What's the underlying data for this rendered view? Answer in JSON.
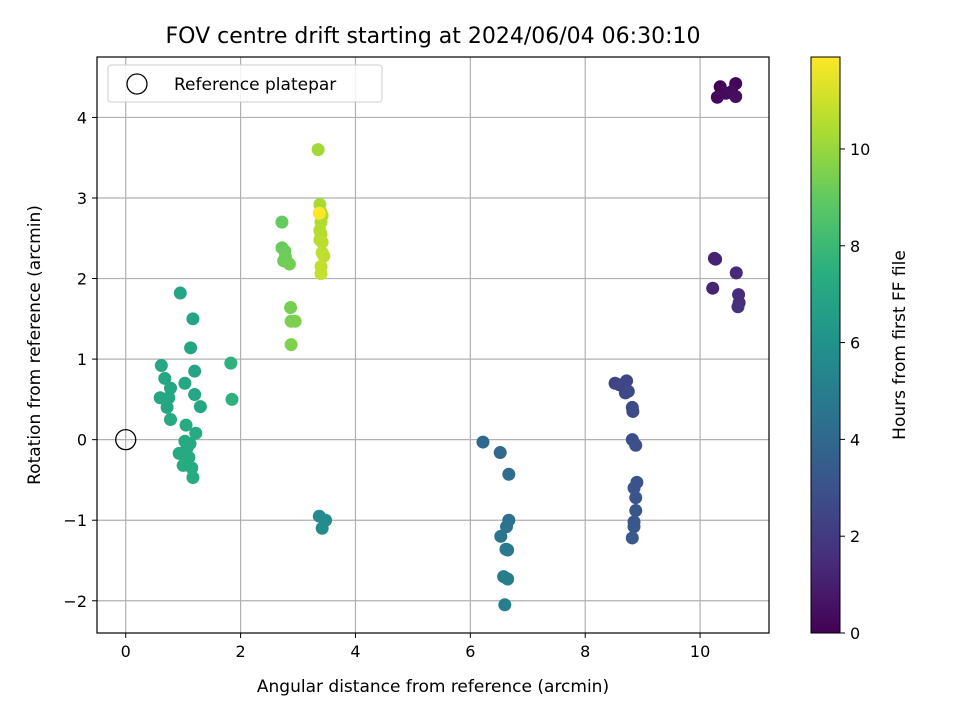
{
  "chart_data": {
    "type": "scatter",
    "title": "FOV centre drift starting at 2024/06/04 06:30:10",
    "xlabel": "Angular distance from reference (arcmin)",
    "ylabel": "Rotation from reference (arcmin)",
    "xlim": [
      -0.5,
      11.2
    ],
    "ylim": [
      -2.4,
      4.75
    ],
    "xticks": [
      0,
      2,
      4,
      6,
      8,
      10
    ],
    "yticks": [
      -2,
      -1,
      0,
      1,
      2,
      3,
      4
    ],
    "grid": true,
    "colormap": "viridis",
    "legend": {
      "placement": "top-left",
      "entries": [
        "Reference platepar"
      ]
    },
    "reference_point": {
      "x": 0,
      "y": 0
    },
    "colorbar": {
      "label": "Hours from first FF file",
      "ticks": [
        0,
        2,
        4,
        6,
        8,
        10
      ],
      "range": [
        0,
        11.9
      ]
    },
    "points": [
      {
        "x": 10.35,
        "y": 4.38,
        "c": 0.05
      },
      {
        "x": 10.62,
        "y": 4.42,
        "c": 0.1
      },
      {
        "x": 10.3,
        "y": 4.25,
        "c": 0.2
      },
      {
        "x": 10.45,
        "y": 4.3,
        "c": 0.3
      },
      {
        "x": 10.55,
        "y": 4.32,
        "c": 0.35
      },
      {
        "x": 10.62,
        "y": 4.26,
        "c": 0.45
      },
      {
        "x": 10.25,
        "y": 2.25,
        "c": 1.0
      },
      {
        "x": 10.27,
        "y": 2.24,
        "c": 1.1
      },
      {
        "x": 10.22,
        "y": 1.88,
        "c": 1.2
      },
      {
        "x": 10.63,
        "y": 2.07,
        "c": 1.4
      },
      {
        "x": 10.67,
        "y": 1.8,
        "c": 1.5
      },
      {
        "x": 10.68,
        "y": 1.7,
        "c": 1.6
      },
      {
        "x": 10.66,
        "y": 1.65,
        "c": 1.7
      },
      {
        "x": 8.52,
        "y": 0.7,
        "c": 2.4
      },
      {
        "x": 8.6,
        "y": 0.68,
        "c": 2.45
      },
      {
        "x": 8.72,
        "y": 0.73,
        "c": 2.5
      },
      {
        "x": 8.7,
        "y": 0.58,
        "c": 2.55
      },
      {
        "x": 8.75,
        "y": 0.6,
        "c": 2.6
      },
      {
        "x": 8.82,
        "y": 0.4,
        "c": 2.7
      },
      {
        "x": 8.83,
        "y": 0.35,
        "c": 2.75
      },
      {
        "x": 8.82,
        "y": 0.0,
        "c": 2.8
      },
      {
        "x": 8.88,
        "y": -0.07,
        "c": 2.9
      },
      {
        "x": 8.9,
        "y": -0.53,
        "c": 3.0
      },
      {
        "x": 8.85,
        "y": -0.6,
        "c": 3.05
      },
      {
        "x": 8.88,
        "y": -0.72,
        "c": 3.1
      },
      {
        "x": 8.88,
        "y": -0.88,
        "c": 3.15
      },
      {
        "x": 8.85,
        "y": -1.02,
        "c": 3.2
      },
      {
        "x": 8.85,
        "y": -1.08,
        "c": 3.25
      },
      {
        "x": 8.82,
        "y": -1.22,
        "c": 3.3
      },
      {
        "x": 6.22,
        "y": -0.03,
        "c": 4.0
      },
      {
        "x": 6.52,
        "y": -0.16,
        "c": 4.1
      },
      {
        "x": 6.67,
        "y": -0.43,
        "c": 4.2
      },
      {
        "x": 6.67,
        "y": -1.0,
        "c": 4.4
      },
      {
        "x": 6.63,
        "y": -1.08,
        "c": 4.5
      },
      {
        "x": 6.53,
        "y": -1.2,
        "c": 4.55
      },
      {
        "x": 6.62,
        "y": -1.36,
        "c": 4.7
      },
      {
        "x": 6.65,
        "y": -1.37,
        "c": 4.8
      },
      {
        "x": 6.58,
        "y": -1.7,
        "c": 4.9
      },
      {
        "x": 6.65,
        "y": -1.73,
        "c": 5.0
      },
      {
        "x": 6.6,
        "y": -2.05,
        "c": 5.1
      },
      {
        "x": 3.37,
        "y": -0.95,
        "c": 5.6
      },
      {
        "x": 3.48,
        "y": -1.0,
        "c": 5.7
      },
      {
        "x": 3.42,
        "y": -1.1,
        "c": 5.8
      },
      {
        "x": 0.95,
        "y": 1.82,
        "c": 7.0
      },
      {
        "x": 1.17,
        "y": 1.5,
        "c": 7.0
      },
      {
        "x": 1.13,
        "y": 1.14,
        "c": 7.0
      },
      {
        "x": 1.2,
        "y": 0.85,
        "c": 7.0
      },
      {
        "x": 0.62,
        "y": 0.92,
        "c": 7.1
      },
      {
        "x": 0.68,
        "y": 0.76,
        "c": 7.1
      },
      {
        "x": 0.78,
        "y": 0.64,
        "c": 7.1
      },
      {
        "x": 1.03,
        "y": 0.7,
        "c": 7.1
      },
      {
        "x": 0.6,
        "y": 0.52,
        "c": 7.1
      },
      {
        "x": 0.75,
        "y": 0.52,
        "c": 7.1
      },
      {
        "x": 0.72,
        "y": 0.4,
        "c": 7.1
      },
      {
        "x": 1.2,
        "y": 0.56,
        "c": 7.1
      },
      {
        "x": 1.3,
        "y": 0.41,
        "c": 7.1
      },
      {
        "x": 0.78,
        "y": 0.25,
        "c": 7.2
      },
      {
        "x": 1.05,
        "y": 0.18,
        "c": 7.2
      },
      {
        "x": 1.22,
        "y": 0.08,
        "c": 7.2
      },
      {
        "x": 1.03,
        "y": -0.02,
        "c": 7.2
      },
      {
        "x": 1.12,
        "y": -0.05,
        "c": 7.2
      },
      {
        "x": 1.07,
        "y": -0.1,
        "c": 7.2
      },
      {
        "x": 0.93,
        "y": -0.17,
        "c": 7.2
      },
      {
        "x": 1.1,
        "y": -0.22,
        "c": 7.2
      },
      {
        "x": 1.0,
        "y": -0.32,
        "c": 7.3
      },
      {
        "x": 1.15,
        "y": -0.35,
        "c": 7.3
      },
      {
        "x": 1.17,
        "y": -0.47,
        "c": 7.3
      },
      {
        "x": 1.83,
        "y": 0.95,
        "c": 7.6
      },
      {
        "x": 1.85,
        "y": 0.5,
        "c": 7.6
      },
      {
        "x": 2.72,
        "y": 2.7,
        "c": 9.0
      },
      {
        "x": 2.72,
        "y": 2.38,
        "c": 9.1
      },
      {
        "x": 2.77,
        "y": 2.34,
        "c": 9.15
      },
      {
        "x": 2.78,
        "y": 2.27,
        "c": 9.2
      },
      {
        "x": 2.75,
        "y": 2.22,
        "c": 9.25
      },
      {
        "x": 2.85,
        "y": 2.18,
        "c": 9.3
      },
      {
        "x": 2.87,
        "y": 1.64,
        "c": 9.4
      },
      {
        "x": 2.88,
        "y": 1.47,
        "c": 9.45
      },
      {
        "x": 2.95,
        "y": 1.47,
        "c": 9.5
      },
      {
        "x": 2.88,
        "y": 1.18,
        "c": 9.55
      },
      {
        "x": 3.35,
        "y": 3.6,
        "c": 10.2
      },
      {
        "x": 3.38,
        "y": 2.92,
        "c": 10.3
      },
      {
        "x": 3.4,
        "y": 2.82,
        "c": 10.35
      },
      {
        "x": 3.42,
        "y": 2.78,
        "c": 10.4
      },
      {
        "x": 3.4,
        "y": 2.7,
        "c": 10.45
      },
      {
        "x": 3.38,
        "y": 2.6,
        "c": 10.5
      },
      {
        "x": 3.4,
        "y": 2.55,
        "c": 10.55
      },
      {
        "x": 3.38,
        "y": 2.48,
        "c": 10.6
      },
      {
        "x": 3.42,
        "y": 2.45,
        "c": 10.65
      },
      {
        "x": 3.42,
        "y": 2.32,
        "c": 10.7
      },
      {
        "x": 3.45,
        "y": 2.28,
        "c": 10.75
      },
      {
        "x": 3.4,
        "y": 2.15,
        "c": 10.8
      },
      {
        "x": 3.4,
        "y": 2.06,
        "c": 10.85
      },
      {
        "x": 3.37,
        "y": 2.81,
        "c": 11.9
      }
    ]
  }
}
